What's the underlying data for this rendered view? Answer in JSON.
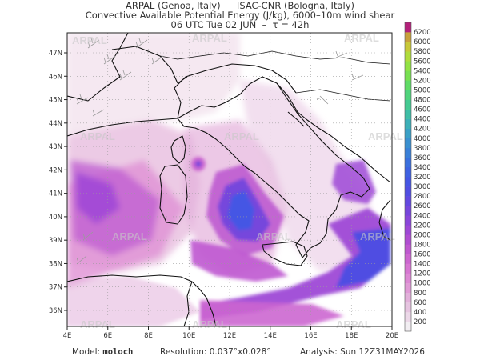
{
  "title": {
    "line1": "ARPAL (Genoa, Italy)  –  ISAC-CNR (Bologna, Italy)",
    "line2": "Convective Available Potential Energy (J/kg), 6000–10m wind shear",
    "line3": "06 UTC Tue 02 JUN  –  τ = 42h"
  },
  "footer": {
    "model_label": "Model:",
    "model_value": "moloch",
    "resolution_label": "Resolution:",
    "resolution_value": "0.037°x0.028°",
    "analysis_label": "Analysis:",
    "analysis_value": "Sun 12Z31MAY2026"
  },
  "map": {
    "lon_labels": [
      "4E",
      "6E",
      "8E",
      "10E",
      "12E",
      "14E",
      "16E",
      "18E",
      "20E"
    ],
    "lat_labels": [
      "36N",
      "37N",
      "38N",
      "39N",
      "40N",
      "41N",
      "42N",
      "43N",
      "44N",
      "45N",
      "46N",
      "47N"
    ],
    "watermark": "ARPAL"
  },
  "colorbar": {
    "levels": [
      "200",
      "400",
      "600",
      "800",
      "1000",
      "1200",
      "1400",
      "1600",
      "1800",
      "2000",
      "2200",
      "2400",
      "2600",
      "2800",
      "3000",
      "3200",
      "3400",
      "3600",
      "3800",
      "4000",
      "4200",
      "4400",
      "4600",
      "4800",
      "5000",
      "5200",
      "5400",
      "5600",
      "5800",
      "6000",
      "6200"
    ],
    "colors": [
      "#f2eef2",
      "#ecd8e8",
      "#e6c4e0",
      "#e2b0da",
      "#e09ad6",
      "#dc88d4",
      "#d676d2",
      "#cc66d0",
      "#bf58d0",
      "#b04ed2",
      "#9e48d6",
      "#8a46da",
      "#7646dc",
      "#6248e0",
      "#504ee2",
      "#4456e4",
      "#3e62e2",
      "#3a70de",
      "#3a80d8",
      "#3a90d0",
      "#3aa0c6",
      "#3cb0b8",
      "#3ebea6",
      "#44ca92",
      "#50d47c",
      "#60dc66",
      "#78e052",
      "#92e244",
      "#b0dc3c",
      "#c8c838",
      "#c8a03c",
      "#b4207a"
    ]
  },
  "colors": {
    "land": "#ffffff",
    "coast": "#111111",
    "grid": "#9a9a9a",
    "barb": "#9a9a9a"
  }
}
